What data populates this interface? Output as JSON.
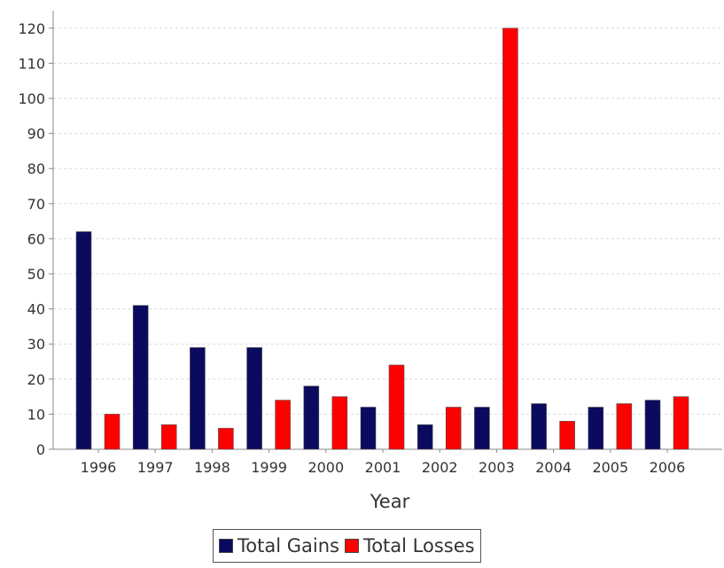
{
  "chart_data": {
    "type": "bar",
    "categories": [
      "1996",
      "1997",
      "1998",
      "1999",
      "2000",
      "2001",
      "2002",
      "2003",
      "2004",
      "2005",
      "2006"
    ],
    "series": [
      {
        "name": "Total Gains",
        "color": "#0a0a5e",
        "values": [
          62,
          41,
          29,
          29,
          18,
          12,
          7,
          12,
          13,
          12,
          14
        ]
      },
      {
        "name": "Total Losses",
        "color": "#ff0000",
        "values": [
          10,
          7,
          6,
          14,
          15,
          24,
          12,
          120,
          8,
          13,
          15
        ]
      }
    ],
    "xlabel": "Year",
    "ylabel": "",
    "ylim": [
      0,
      125
    ],
    "yticks": [
      0,
      10,
      20,
      30,
      40,
      50,
      60,
      70,
      80,
      90,
      100,
      110,
      120
    ],
    "grid": true,
    "legend": "bottom"
  }
}
